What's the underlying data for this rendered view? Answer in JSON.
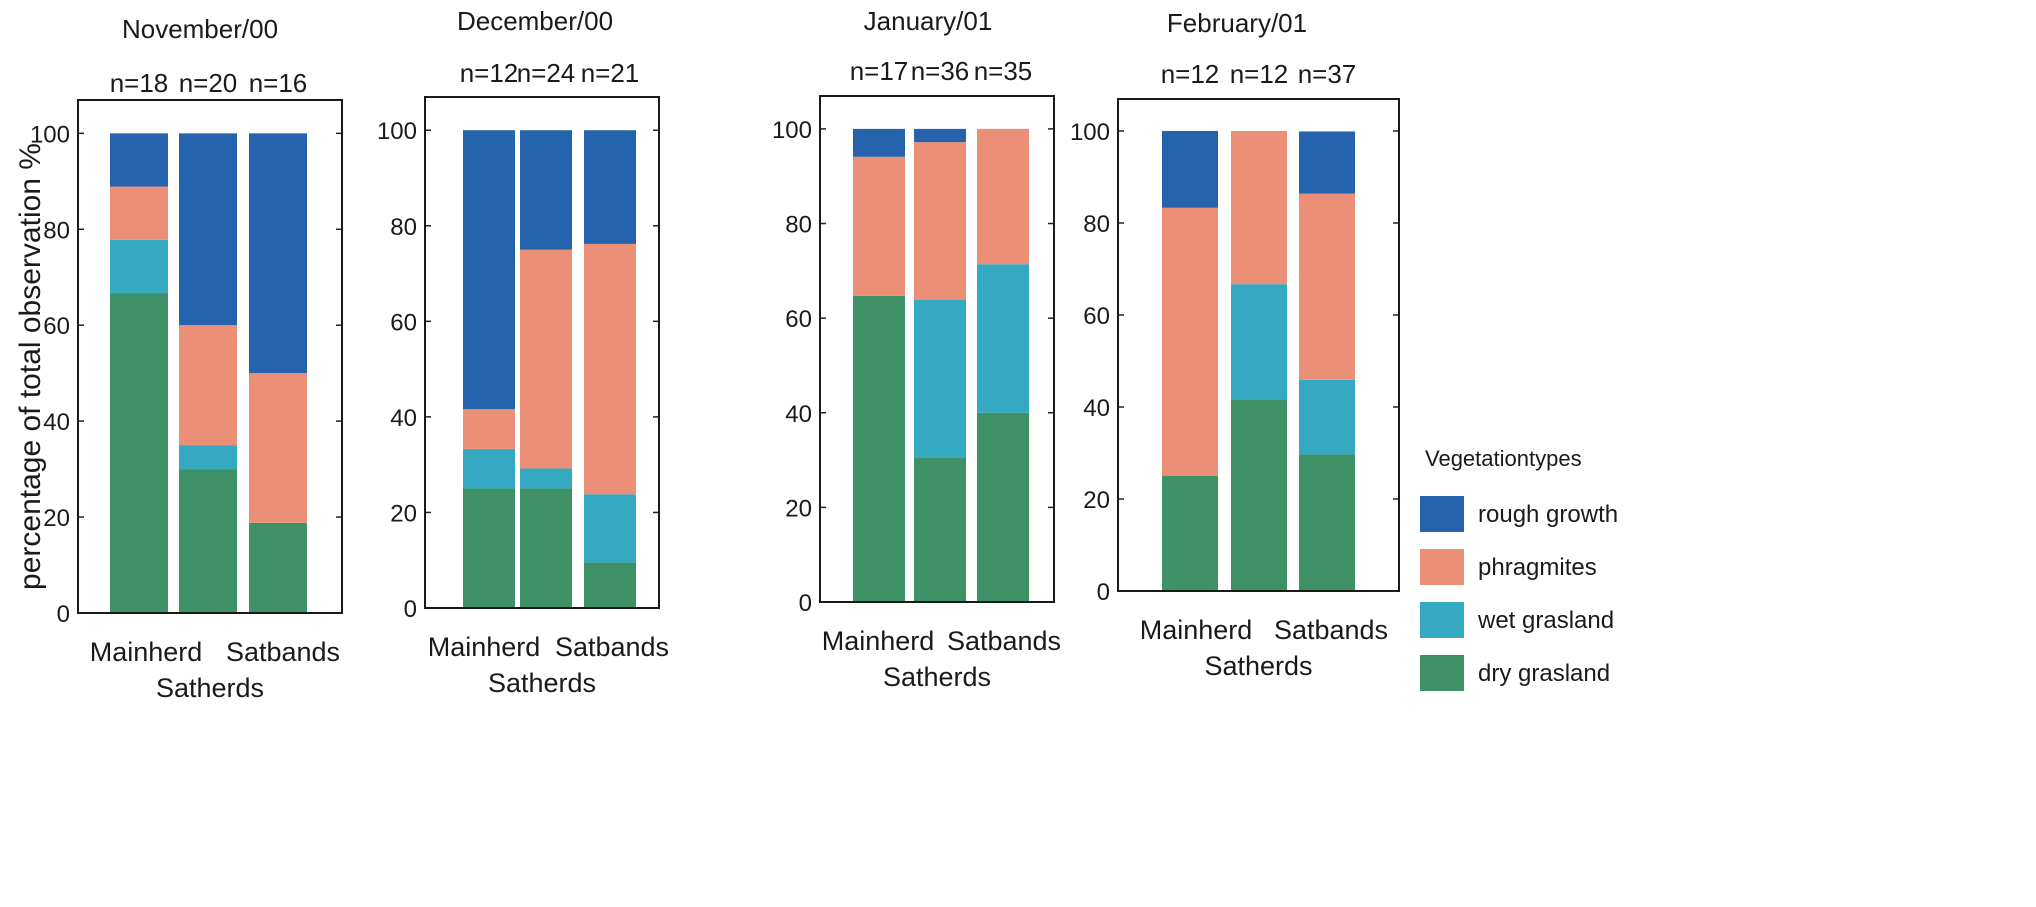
{
  "colors": {
    "rough growth": "#2563ad",
    "phragmites": "#ec8f77",
    "wet grasland": "#36a9c2",
    "dry grasland": "#3e9065"
  },
  "legend": {
    "title": "Vegetationtypes",
    "items": [
      "rough growth",
      "phragmites",
      "wet grasland",
      "dry grasland"
    ]
  },
  "chart_data": [
    {
      "type": "bar",
      "stacked": true,
      "title": "November/00",
      "ylabel": "percentage of total observation %",
      "xlabel": "Satherds",
      "ylim": [
        0,
        100
      ],
      "yticks": [
        0,
        20,
        40,
        60,
        80,
        100
      ],
      "categories": [
        "Mainherd",
        "",
        "Satbands"
      ],
      "category_labels": [
        "Mainherd",
        "Satbands"
      ],
      "n": [
        "n=18",
        "n=20",
        "n=16"
      ],
      "series": [
        {
          "name": "dry grasland",
          "values": [
            66.7,
            30,
            18.8
          ]
        },
        {
          "name": "wet grasland",
          "values": [
            11.1,
            5,
            0
          ]
        },
        {
          "name": "phragmites",
          "values": [
            11.1,
            25,
            31.2
          ]
        },
        {
          "name": "rough growth",
          "values": [
            11.1,
            40,
            50
          ]
        }
      ]
    },
    {
      "type": "bar",
      "stacked": true,
      "title": "December/00",
      "ylabel": "",
      "xlabel": "Satherds",
      "ylim": [
        0,
        100
      ],
      "yticks": [
        0,
        20,
        40,
        60,
        80,
        100
      ],
      "categories": [
        "Mainherd",
        "",
        "Satbands"
      ],
      "category_labels": [
        "Mainherd",
        "Satbands"
      ],
      "n": [
        "n=12",
        "n=24",
        "n=21"
      ],
      "series": [
        {
          "name": "dry grasland",
          "values": [
            25,
            25,
            9.5
          ]
        },
        {
          "name": "wet grasland",
          "values": [
            8.3,
            4.2,
            14.3
          ]
        },
        {
          "name": "phragmites",
          "values": [
            8.3,
            45.8,
            52.4
          ]
        },
        {
          "name": "rough growth",
          "values": [
            58.4,
            25,
            23.8
          ]
        }
      ]
    },
    {
      "type": "bar",
      "stacked": true,
      "title": "January/01",
      "ylabel": "",
      "xlabel": "Satherds",
      "ylim": [
        0,
        100
      ],
      "yticks": [
        0,
        20,
        40,
        60,
        80,
        100
      ],
      "categories": [
        "Mainherd",
        "",
        "Satbands"
      ],
      "category_labels": [
        "Mainherd",
        "Satbands"
      ],
      "n": [
        "n=17",
        "n=36",
        "n=35"
      ],
      "series": [
        {
          "name": "dry grasland",
          "values": [
            64.7,
            30.6,
            40
          ]
        },
        {
          "name": "wet grasland",
          "values": [
            0,
            33.3,
            31.4
          ]
        },
        {
          "name": "phragmites",
          "values": [
            29.4,
            33.3,
            28.6
          ]
        },
        {
          "name": "rough growth",
          "values": [
            5.9,
            2.8,
            0
          ]
        }
      ]
    },
    {
      "type": "bar",
      "stacked": true,
      "title": "February/01",
      "ylabel": "",
      "xlabel": "Satherds",
      "ylim": [
        0,
        100
      ],
      "yticks": [
        0,
        20,
        40,
        60,
        80,
        100
      ],
      "categories": [
        "Mainherd",
        "",
        "Satbands"
      ],
      "category_labels": [
        "Mainherd",
        "Satbands"
      ],
      "n": [
        "n=12",
        "n=12",
        "n=37"
      ],
      "series": [
        {
          "name": "dry grasland",
          "values": [
            25,
            41.7,
            29.7
          ]
        },
        {
          "name": "wet grasland",
          "values": [
            0,
            25,
            16.2
          ]
        },
        {
          "name": "phragmites",
          "values": [
            58.3,
            33.3,
            40.5
          ]
        },
        {
          "name": "rough growth",
          "values": [
            16.7,
            0,
            13.5
          ]
        }
      ]
    }
  ]
}
